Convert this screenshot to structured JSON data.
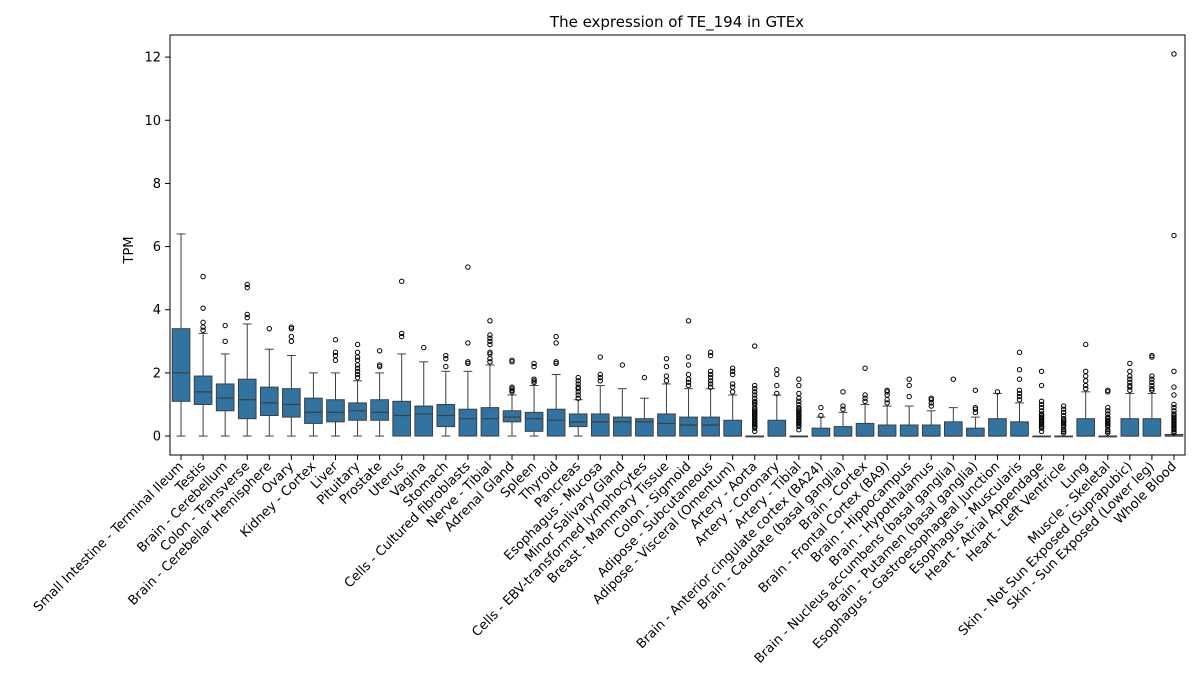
{
  "chart_data": {
    "type": "box",
    "title": "The expression of TE_194 in GTEx",
    "xlabel": "",
    "ylabel": "TPM",
    "ylim": [
      -0.6,
      12.7
    ],
    "yticks": [
      0,
      2,
      4,
      6,
      8,
      10,
      12
    ],
    "grid": false,
    "legend": "none",
    "box_color": "#3274a1",
    "categories": [
      "Small Intestine - Terminal Ileum",
      "Testis",
      "Brain - Cerebellum",
      "Colon - Transverse",
      "Brain - Cerebellar Hemisphere",
      "Ovary",
      "Kidney - Cortex",
      "Liver",
      "Pituitary",
      "Prostate",
      "Uterus",
      "Vagina",
      "Stomach",
      "Cells - Cultured fibroblasts",
      "Nerve - Tibial",
      "Adrenal Gland",
      "Spleen",
      "Thyroid",
      "Pancreas",
      "Esophagus - Mucosa",
      "Minor Salivary Gland",
      "Cells - EBV-transformed lymphocytes",
      "Breast - Mammary Tissue",
      "Colon - Sigmoid",
      "Adipose - Subcutaneous",
      "Adipose - Visceral (Omentum)",
      "Artery - Aorta",
      "Artery - Coronary",
      "Artery - Tibial",
      "Brain - Anterior cingulate cortex (BA24)",
      "Brain - Caudate (basal ganglia)",
      "Brain - Cortex",
      "Brain - Frontal Cortex (BA9)",
      "Brain - Hippocampus",
      "Brain - Hypothalamus",
      "Brain - Nucleus accumbens (basal ganglia)",
      "Brain - Putamen (basal ganglia)",
      "Esophagus - Gastroesophageal Junction",
      "Esophagus - Muscularis",
      "Heart - Atrial Appendage",
      "Heart - Left Ventricle",
      "Lung",
      "Muscle - Skeletal",
      "Skin - Not Sun Exposed (Suprapubic)",
      "Skin - Sun Exposed (Lower leg)",
      "Whole Blood"
    ],
    "boxes": [
      {
        "q1": 1.1,
        "median": 2.0,
        "q3": 3.4,
        "whislo": 0,
        "whishi": 6.4,
        "fliers": []
      },
      {
        "q1": 1.0,
        "median": 1.4,
        "q3": 1.9,
        "whislo": 0,
        "whishi": 3.25,
        "fliers": [
          3.35,
          3.45,
          3.6,
          4.05,
          5.05
        ]
      },
      {
        "q1": 0.8,
        "median": 1.2,
        "q3": 1.65,
        "whislo": 0,
        "whishi": 2.6,
        "fliers": [
          3.0,
          3.5
        ]
      },
      {
        "q1": 0.55,
        "median": 1.15,
        "q3": 1.8,
        "whislo": 0,
        "whishi": 3.55,
        "fliers": [
          3.75,
          3.85,
          4.7,
          4.8
        ]
      },
      {
        "q1": 0.65,
        "median": 1.05,
        "q3": 1.55,
        "whislo": 0,
        "whishi": 2.75,
        "fliers": [
          3.4
        ]
      },
      {
        "q1": 0.6,
        "median": 1.0,
        "q3": 1.5,
        "whislo": 0,
        "whishi": 2.55,
        "fliers": [
          3.0,
          3.15,
          3.4,
          3.45
        ]
      },
      {
        "q1": 0.4,
        "median": 0.75,
        "q3": 1.2,
        "whislo": 0,
        "whishi": 2.0,
        "fliers": []
      },
      {
        "q1": 0.45,
        "median": 0.75,
        "q3": 1.15,
        "whislo": 0,
        "whishi": 2.0,
        "fliers": [
          2.4,
          2.55,
          2.65,
          3.05
        ]
      },
      {
        "q1": 0.5,
        "median": 0.8,
        "q3": 1.05,
        "whislo": 0,
        "whishi": 1.75,
        "fliers": [
          1.85,
          1.95,
          2.05,
          2.15,
          2.25,
          2.4,
          2.5,
          2.65,
          2.9
        ]
      },
      {
        "q1": 0.5,
        "median": 0.75,
        "q3": 1.15,
        "whislo": 0,
        "whishi": 2.0,
        "fliers": [
          2.2,
          2.25,
          2.7
        ]
      },
      {
        "q1": 0.0,
        "median": 0.65,
        "q3": 1.1,
        "whislo": 0,
        "whishi": 2.6,
        "fliers": [
          3.15,
          3.25,
          4.9
        ]
      },
      {
        "q1": 0.0,
        "median": 0.7,
        "q3": 0.95,
        "whislo": 0,
        "whishi": 2.35,
        "fliers": [
          2.8
        ]
      },
      {
        "q1": 0.3,
        "median": 0.65,
        "q3": 1.0,
        "whislo": 0,
        "whishi": 2.05,
        "fliers": [
          2.2,
          2.45,
          2.55
        ]
      },
      {
        "q1": 0.0,
        "median": 0.55,
        "q3": 0.85,
        "whislo": 0,
        "whishi": 2.05,
        "fliers": [
          2.3,
          2.35,
          2.95,
          5.35
        ]
      },
      {
        "q1": 0.0,
        "median": 0.55,
        "q3": 0.9,
        "whislo": 0,
        "whishi": 2.25,
        "fliers": [
          2.35,
          2.45,
          2.6,
          2.65,
          2.9,
          3.0,
          3.1,
          3.2,
          3.65
        ]
      },
      {
        "q1": 0.45,
        "median": 0.6,
        "q3": 0.8,
        "whislo": 0,
        "whishi": 1.3,
        "fliers": [
          1.4,
          1.45,
          1.5,
          1.55,
          2.35,
          2.4
        ]
      },
      {
        "q1": 0.15,
        "median": 0.55,
        "q3": 0.75,
        "whislo": 0,
        "whishi": 1.6,
        "fliers": [
          1.7,
          1.75,
          1.8,
          2.2,
          2.3
        ]
      },
      {
        "q1": 0.0,
        "median": 0.5,
        "q3": 0.85,
        "whislo": 0,
        "whishi": 1.95,
        "fliers": [
          2.3,
          2.35,
          2.95,
          3.15
        ]
      },
      {
        "q1": 0.3,
        "median": 0.45,
        "q3": 0.7,
        "whislo": 0,
        "whishi": 1.15,
        "fliers": [
          1.2,
          1.3,
          1.4,
          1.5,
          1.55,
          1.65,
          1.75,
          1.85
        ]
      },
      {
        "q1": 0.0,
        "median": 0.45,
        "q3": 0.7,
        "whislo": 0,
        "whishi": 1.6,
        "fliers": [
          1.75,
          1.85,
          1.95,
          2.5
        ]
      },
      {
        "q1": 0.0,
        "median": 0.45,
        "q3": 0.6,
        "whislo": 0,
        "whishi": 1.5,
        "fliers": [
          2.25
        ]
      },
      {
        "q1": 0.0,
        "median": 0.45,
        "q3": 0.55,
        "whislo": 0,
        "whishi": 1.2,
        "fliers": [
          1.85
        ]
      },
      {
        "q1": 0.0,
        "median": 0.4,
        "q3": 0.7,
        "whislo": 0,
        "whishi": 1.65,
        "fliers": [
          1.75,
          1.9,
          2.2,
          2.45
        ]
      },
      {
        "q1": 0.0,
        "median": 0.35,
        "q3": 0.6,
        "whislo": 0,
        "whishi": 1.5,
        "fliers": [
          1.6,
          1.7,
          1.8,
          1.95,
          2.25,
          2.5,
          3.65
        ]
      },
      {
        "q1": 0.0,
        "median": 0.35,
        "q3": 0.6,
        "whislo": 0,
        "whishi": 1.5,
        "fliers": [
          1.55,
          1.65,
          1.75,
          1.85,
          1.95,
          2.05,
          2.55,
          2.65
        ]
      },
      {
        "q1": 0.0,
        "median": 0.0,
        "q3": 0.5,
        "whislo": 0,
        "whishi": 1.3,
        "fliers": [
          1.4,
          1.55,
          1.65,
          1.95,
          2.05,
          2.15
        ]
      },
      {
        "q1": 0.0,
        "median": 0.0,
        "q3": 0.0,
        "whislo": 0,
        "whishi": 0,
        "fliers": [
          0.15,
          0.25,
          0.3,
          0.35,
          0.4,
          0.45,
          0.5,
          0.55,
          0.6,
          0.65,
          0.7,
          0.75,
          0.8,
          0.85,
          0.9,
          1.0,
          1.05,
          1.1,
          1.2,
          1.3,
          1.4,
          1.5,
          1.6,
          2.85
        ]
      },
      {
        "q1": 0.0,
        "median": 0.0,
        "q3": 0.5,
        "whislo": 0,
        "whishi": 1.3,
        "fliers": [
          1.35,
          1.6,
          1.95,
          2.1
        ]
      },
      {
        "q1": 0.0,
        "median": 0.0,
        "q3": 0.0,
        "whislo": 0,
        "whishi": 0,
        "fliers": [
          0.2,
          0.3,
          0.35,
          0.4,
          0.45,
          0.5,
          0.55,
          0.6,
          0.65,
          0.7,
          0.75,
          0.8,
          0.85,
          0.9,
          1.0,
          1.1,
          1.2,
          1.35,
          1.6,
          1.8
        ]
      },
      {
        "q1": 0.0,
        "median": 0.0,
        "q3": 0.25,
        "whislo": 0,
        "whishi": 0.6,
        "fliers": [
          0.65,
          0.9
        ]
      },
      {
        "q1": 0.0,
        "median": 0.0,
        "q3": 0.3,
        "whislo": 0,
        "whishi": 0.75,
        "fliers": [
          0.85,
          0.95,
          1.4
        ]
      },
      {
        "q1": 0.0,
        "median": 0.0,
        "q3": 0.4,
        "whislo": 0,
        "whishi": 1.0,
        "fliers": [
          1.1,
          1.2,
          1.3,
          2.15
        ]
      },
      {
        "q1": 0.0,
        "median": 0.0,
        "q3": 0.35,
        "whislo": 0,
        "whishi": 0.95,
        "fliers": [
          1.05,
          1.15,
          1.3,
          1.4,
          1.45
        ]
      },
      {
        "q1": 0.0,
        "median": 0.0,
        "q3": 0.35,
        "whislo": 0,
        "whishi": 0.95,
        "fliers": [
          1.25,
          1.6,
          1.8
        ]
      },
      {
        "q1": 0.0,
        "median": 0.0,
        "q3": 0.35,
        "whislo": 0,
        "whishi": 0.8,
        "fliers": [
          0.95,
          1.05,
          1.15,
          1.2
        ]
      },
      {
        "q1": 0.0,
        "median": 0.0,
        "q3": 0.45,
        "whislo": 0,
        "whishi": 0.9,
        "fliers": [
          1.8
        ]
      },
      {
        "q1": 0.0,
        "median": 0.0,
        "q3": 0.25,
        "whislo": 0,
        "whishi": 0.6,
        "fliers": [
          0.75,
          0.85,
          0.9,
          1.45
        ]
      },
      {
        "q1": 0.0,
        "median": 0.0,
        "q3": 0.55,
        "whislo": 0,
        "whishi": 1.35,
        "fliers": [
          1.4
        ]
      },
      {
        "q1": 0.0,
        "median": 0.0,
        "q3": 0.45,
        "whislo": 0,
        "whishi": 1.05,
        "fliers": [
          1.15,
          1.25,
          1.35,
          1.45,
          1.8,
          2.1,
          2.65
        ]
      },
      {
        "q1": 0.0,
        "median": 0.0,
        "q3": 0.0,
        "whislo": 0,
        "whishi": 0,
        "fliers": [
          0.15,
          0.25,
          0.3,
          0.35,
          0.4,
          0.45,
          0.5,
          0.55,
          0.6,
          0.65,
          0.7,
          0.8,
          0.9,
          1.0,
          1.1,
          1.6,
          2.05
        ]
      },
      {
        "q1": 0.0,
        "median": 0.0,
        "q3": 0.0,
        "whislo": 0,
        "whishi": 0,
        "fliers": [
          0.1,
          0.15,
          0.2,
          0.3,
          0.35,
          0.4,
          0.45,
          0.5,
          0.55,
          0.65,
          0.75,
          0.85,
          0.95
        ]
      },
      {
        "q1": 0.0,
        "median": 0.0,
        "q3": 0.55,
        "whislo": 0,
        "whishi": 1.4,
        "fliers": [
          1.5,
          1.6,
          1.75,
          1.9,
          2.05,
          2.9
        ]
      },
      {
        "q1": 0.0,
        "median": 0.0,
        "q3": 0.0,
        "whislo": 0,
        "whishi": 0,
        "fliers": [
          0.1,
          0.15,
          0.2,
          0.3,
          0.35,
          0.4,
          0.45,
          0.5,
          0.55,
          0.6,
          0.7,
          0.8,
          0.9,
          1.4,
          1.45
        ]
      },
      {
        "q1": 0.0,
        "median": 0.0,
        "q3": 0.55,
        "whislo": 0,
        "whishi": 1.35,
        "fliers": [
          1.45,
          1.55,
          1.6,
          1.7,
          1.8,
          1.9,
          2.05,
          2.3
        ]
      },
      {
        "q1": 0.0,
        "median": 0.0,
        "q3": 0.55,
        "whislo": 0,
        "whishi": 1.35,
        "fliers": [
          1.45,
          1.5,
          1.6,
          1.7,
          1.8,
          1.9,
          2.5,
          2.55
        ]
      },
      {
        "q1": 0.0,
        "median": 0.0,
        "q3": 0.05,
        "whislo": 0,
        "whishi": 0.05,
        "fliers": [
          0.1,
          0.15,
          0.2,
          0.25,
          0.3,
          0.35,
          0.4,
          0.45,
          0.5,
          0.55,
          0.6,
          0.65,
          0.7,
          0.8,
          0.9,
          1.0,
          1.3,
          1.55,
          2.05,
          6.35,
          12.1
        ]
      }
    ]
  }
}
